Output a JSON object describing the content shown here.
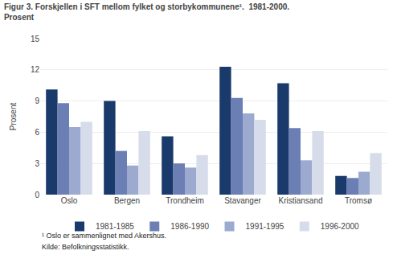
{
  "chart_data": {
    "type": "bar",
    "title": "Figur 3. Forskjellen i SFT mellom fylket og storbykommunene¹.  1981-2000.",
    "subtitle": "Prosent",
    "ylabel": "Prosent",
    "categories": [
      "Oslo",
      "Bergen",
      "Trondheim",
      "Stavanger",
      "Kristiansand",
      "Tromsø"
    ],
    "series": [
      {
        "name": "1981-1985",
        "color": "#1a3a6b",
        "values": [
          10.1,
          9.0,
          5.6,
          12.3,
          10.7,
          1.8
        ]
      },
      {
        "name": "1986-1990",
        "color": "#6b7fb5",
        "values": [
          8.8,
          4.2,
          3.0,
          9.3,
          6.4,
          1.6
        ]
      },
      {
        "name": "1991-1995",
        "color": "#9daad0",
        "values": [
          6.5,
          2.8,
          2.6,
          7.8,
          3.3,
          2.2
        ]
      },
      {
        "name": "1996-2000",
        "color": "#d6dcea",
        "values": [
          7.0,
          6.1,
          3.8,
          7.2,
          6.1,
          4.0
        ]
      }
    ],
    "ylim": [
      0,
      15
    ],
    "yticks": [
      0,
      3,
      6,
      9,
      12,
      15
    ],
    "grid": true,
    "legend": "bottom",
    "annotations": [
      "¹ Oslo er sammenlignet med Akershus.",
      "Kilde: Befolkningsstatistikk."
    ]
  }
}
